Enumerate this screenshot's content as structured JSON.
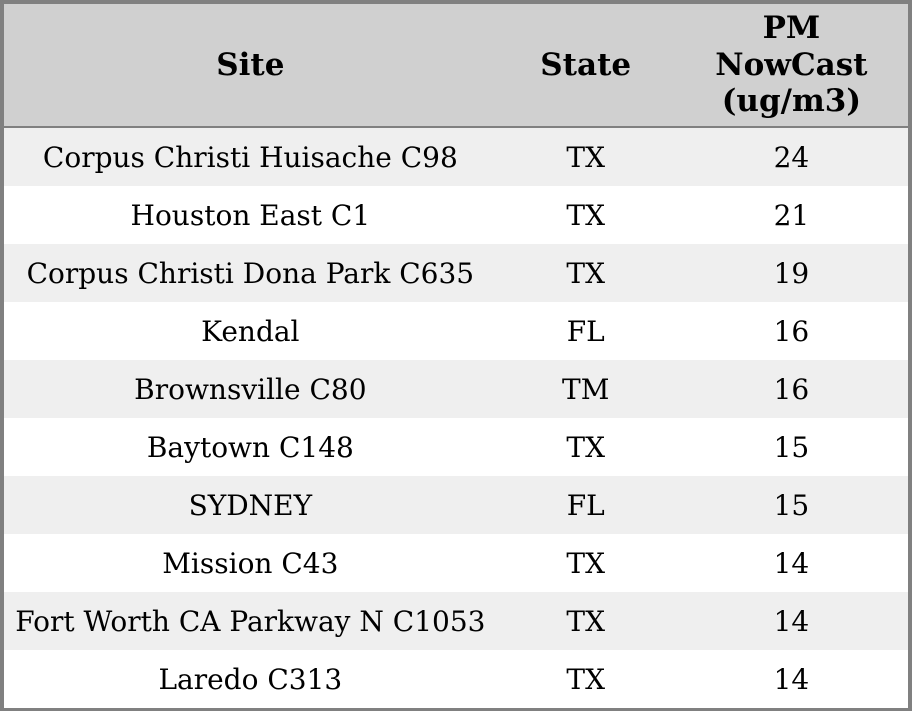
{
  "chart_data": {
    "type": "table",
    "columns": [
      "Site",
      "State",
      "PM NowCast (ug/m3)"
    ],
    "rows": [
      {
        "site": "Corpus Christi Huisache C98",
        "state": "TX",
        "pm_nowcast_ugm3": 24
      },
      {
        "site": "Houston East C1",
        "state": "TX",
        "pm_nowcast_ugm3": 21
      },
      {
        "site": "Corpus Christi Dona Park C635",
        "state": "TX",
        "pm_nowcast_ugm3": 19
      },
      {
        "site": "Kendal",
        "state": "FL",
        "pm_nowcast_ugm3": 16
      },
      {
        "site": "Brownsville C80",
        "state": "TM",
        "pm_nowcast_ugm3": 16
      },
      {
        "site": "Baytown C148",
        "state": "TX",
        "pm_nowcast_ugm3": 15
      },
      {
        "site": "SYDNEY",
        "state": "FL",
        "pm_nowcast_ugm3": 15
      },
      {
        "site": "Mission C43",
        "state": "TX",
        "pm_nowcast_ugm3": 14
      },
      {
        "site": "Fort Worth CA Parkway N C1053",
        "state": "TX",
        "pm_nowcast_ugm3": 14
      },
      {
        "site": "Laredo C313",
        "state": "TX",
        "pm_nowcast_ugm3": 14
      }
    ]
  },
  "header": {
    "site_label": "Site",
    "state_label": "State",
    "pm_label": "PM\nNowCast\n(ug/m3)"
  },
  "colors": {
    "header_bg": "#d0d0d0",
    "row_alt_bg": "#efefef",
    "row_bg": "#ffffff",
    "border": "#808080",
    "text": "#000000"
  }
}
